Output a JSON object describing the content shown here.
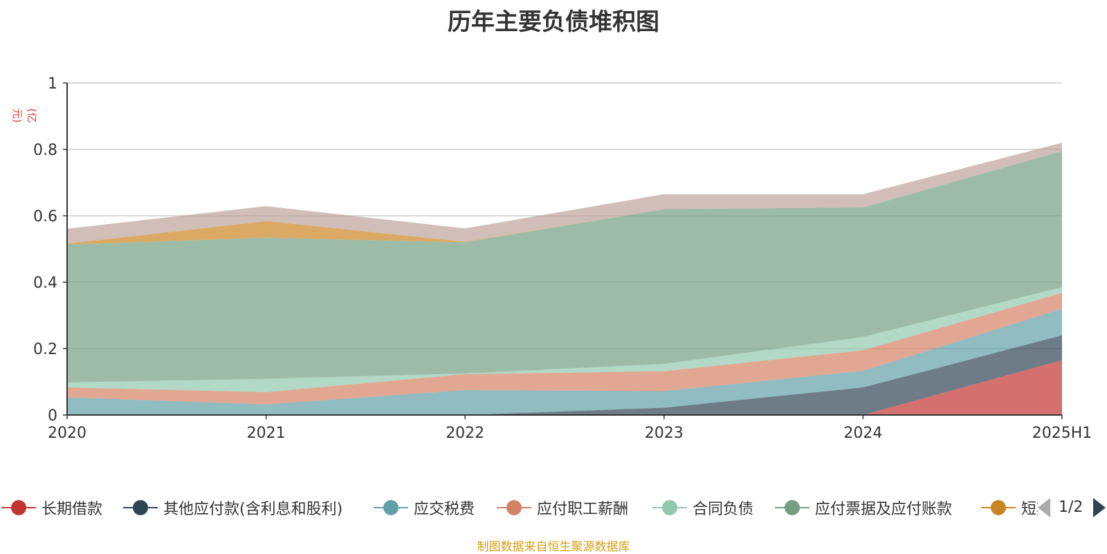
{
  "chart_data": {
    "type": "area",
    "stacked": true,
    "title": "历年主要负债堆积图",
    "unit_label": "(亿元)",
    "categories": [
      "2020",
      "2021",
      "2022",
      "2023",
      "2024",
      "2025H1"
    ],
    "ylim": [
      0,
      1
    ],
    "y_ticks": [
      "0",
      "0.2",
      "0.4",
      "0.6",
      "0.8",
      "1"
    ],
    "grid": true,
    "legend_position": "bottom",
    "series": [
      {
        "name": "长期借款",
        "color": "#c23531",
        "values": [
          0,
          0,
          0,
          0,
          0,
          0.165
        ]
      },
      {
        "name": "其他应付款(含利息和股利)",
        "color": "#2f4554",
        "values": [
          0,
          0,
          0,
          0.022,
          0.083,
          0.075
        ]
      },
      {
        "name": "应交税费",
        "color": "#61a0a8",
        "values": [
          0.053,
          0.032,
          0.075,
          0.05,
          0.05,
          0.08
        ]
      },
      {
        "name": "应付职工薪酬",
        "color": "#d48265",
        "values": [
          0.03,
          0.037,
          0.048,
          0.06,
          0.062,
          0.048
        ]
      },
      {
        "name": "合同负债",
        "color": "#91c7ae",
        "values": [
          0.015,
          0.04,
          0.002,
          0.022,
          0.04,
          0.017
        ]
      },
      {
        "name": "应付票据及应付账款",
        "color": "#749f83",
        "values": [
          0.415,
          0.425,
          0.395,
          0.466,
          0.39,
          0.41
        ]
      },
      {
        "name": "短期借款",
        "color": "#ca8622",
        "values": [
          0.003,
          0.05,
          0.002,
          0,
          0,
          0
        ]
      },
      {
        "name": "",
        "color": "#bda29a",
        "values": [
          0.045,
          0.045,
          0.04,
          0.045,
          0.04,
          0.025
        ]
      }
    ]
  },
  "legend": {
    "visible_items": [
      {
        "label": "长期借款",
        "color": "#c23531"
      },
      {
        "label": "其他应付款(含利息和股利)",
        "color": "#2f4554"
      },
      {
        "label": "应交税费",
        "color": "#61a0a8"
      },
      {
        "label": "应付职工薪酬",
        "color": "#d48265"
      },
      {
        "label": "合同负债",
        "color": "#91c7ae"
      },
      {
        "label": "应付票据及应付账款",
        "color": "#749f83"
      },
      {
        "label": "短期借款",
        "color": "#ca8622"
      }
    ],
    "page_indicator": "1/2"
  },
  "footer": {
    "source_note": "制图数据来自恒生聚源数据库"
  }
}
